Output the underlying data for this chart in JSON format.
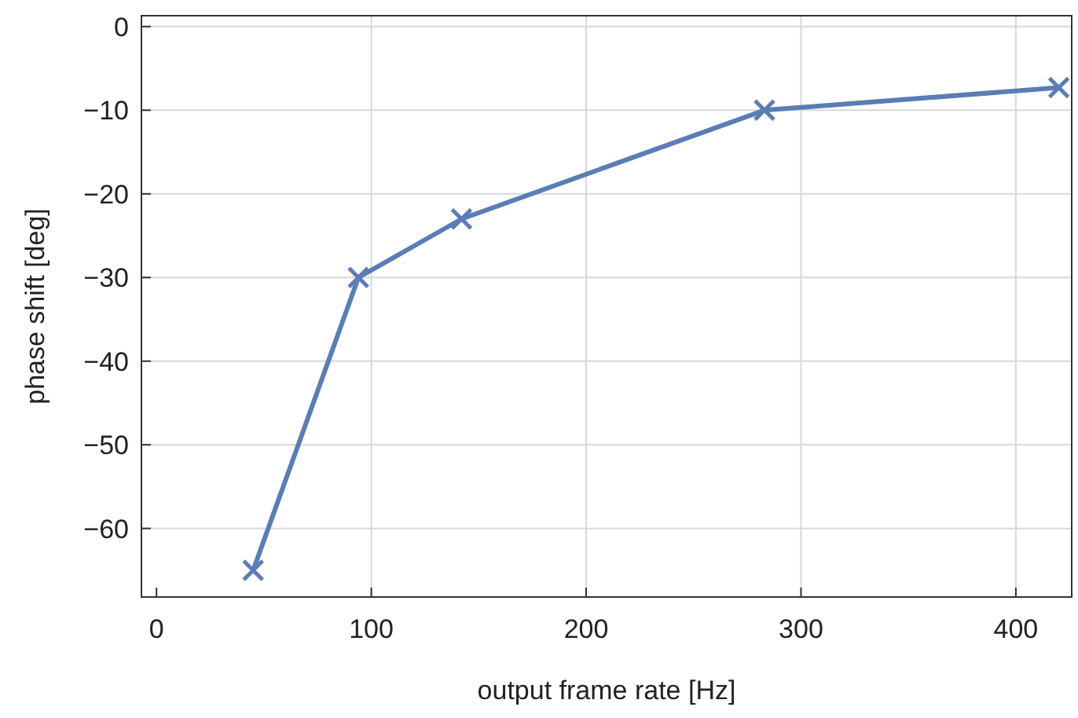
{
  "chart_data": {
    "type": "line",
    "xlabel": "output frame rate [Hz]",
    "ylabel": "phase shift [deg]",
    "x": [
      45,
      94,
      142,
      283,
      420
    ],
    "series": [
      {
        "color": "#5a7db5",
        "values": [
          -65,
          -30,
          -23,
          -10,
          -7.3
        ]
      }
    ],
    "xlim": [
      -7,
      426
    ],
    "ylim": [
      -68.2,
      1.3
    ],
    "xticks": [
      0,
      100,
      200,
      300,
      400
    ],
    "yticks": [
      0,
      -10,
      -20,
      -30,
      -40,
      -50,
      -60
    ],
    "grid": true,
    "marker": "cross",
    "line_style": "solid"
  }
}
